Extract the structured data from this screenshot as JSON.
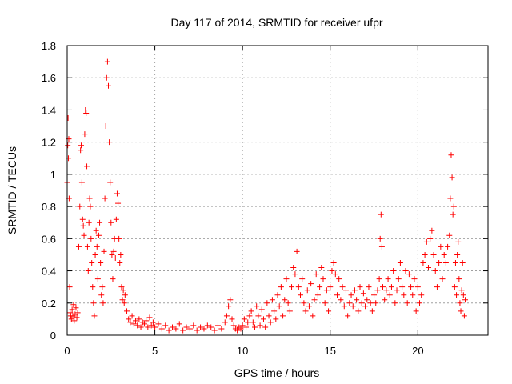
{
  "chart_data": {
    "type": "scatter",
    "title": "Day 117 of 2014, SRMTID for receiver ufpr",
    "xlabel": "GPS time / hours",
    "ylabel": "SRMTID / TECUs",
    "xlim": [
      0,
      24
    ],
    "ylim": [
      0,
      1.8
    ],
    "xticks": [
      0,
      5,
      10,
      15,
      20
    ],
    "xtick_labels": [
      "0",
      "5",
      "10",
      "15",
      "20"
    ],
    "yticks": [
      0,
      0.2,
      0.4,
      0.6,
      0.8,
      1,
      1.2,
      1.4,
      1.6,
      1.8
    ],
    "ytick_labels": [
      "0",
      "0.2",
      "0.4",
      "0.6",
      "0.8",
      "1",
      "1.2",
      "1.4",
      "1.6",
      "1.8"
    ],
    "grid": true,
    "marker": "+",
    "marker_color": "#ff0000",
    "series": [
      {
        "name": "SRMTID",
        "points": [
          [
            0.0,
            0.95
          ],
          [
            0.03,
            1.18
          ],
          [
            0.05,
            1.35
          ],
          [
            0.07,
            1.1
          ],
          [
            0.09,
            1.22
          ],
          [
            0.11,
            0.85
          ],
          [
            0.14,
            0.3
          ],
          [
            0.17,
            0.14
          ],
          [
            0.2,
            0.12
          ],
          [
            0.24,
            0.1
          ],
          [
            0.28,
            0.16
          ],
          [
            0.32,
            0.12
          ],
          [
            0.36,
            0.19
          ],
          [
            0.4,
            0.09
          ],
          [
            0.45,
            0.13
          ],
          [
            0.5,
            0.17
          ],
          [
            0.55,
            0.11
          ],
          [
            0.6,
            0.14
          ],
          [
            0.66,
            0.55
          ],
          [
            0.72,
            0.8
          ],
          [
            0.76,
            1.15
          ],
          [
            0.8,
            1.18
          ],
          [
            0.84,
            0.95
          ],
          [
            0.88,
            0.72
          ],
          [
            0.92,
            0.68
          ],
          [
            0.96,
            0.62
          ],
          [
            1.0,
            1.25
          ],
          [
            1.04,
            1.4
          ],
          [
            1.08,
            1.38
          ],
          [
            1.12,
            1.05
          ],
          [
            1.16,
            0.55
          ],
          [
            1.2,
            0.4
          ],
          [
            1.24,
            0.7
          ],
          [
            1.28,
            0.85
          ],
          [
            1.32,
            0.8
          ],
          [
            1.36,
            0.6
          ],
          [
            1.4,
            0.45
          ],
          [
            1.45,
            0.3
          ],
          [
            1.5,
            0.2
          ],
          [
            1.55,
            0.12
          ],
          [
            1.6,
            0.5
          ],
          [
            1.65,
            0.65
          ],
          [
            1.7,
            0.55
          ],
          [
            1.75,
            0.35
          ],
          [
            1.8,
            0.62
          ],
          [
            1.85,
            0.7
          ],
          [
            1.9,
            0.45
          ],
          [
            1.95,
            0.25
          ],
          [
            2.0,
            0.3
          ],
          [
            2.05,
            0.2
          ],
          [
            2.1,
            0.52
          ],
          [
            2.15,
            0.85
          ],
          [
            2.2,
            1.3
          ],
          [
            2.25,
            1.6
          ],
          [
            2.3,
            1.7
          ],
          [
            2.35,
            1.55
          ],
          [
            2.4,
            1.2
          ],
          [
            2.45,
            0.95
          ],
          [
            2.5,
            0.7
          ],
          [
            2.55,
            0.5
          ],
          [
            2.6,
            0.35
          ],
          [
            2.65,
            0.52
          ],
          [
            2.7,
            0.6
          ],
          [
            2.75,
            0.48
          ],
          [
            2.8,
            0.72
          ],
          [
            2.85,
            0.88
          ],
          [
            2.9,
            0.82
          ],
          [
            2.95,
            0.6
          ],
          [
            3.0,
            0.45
          ],
          [
            3.05,
            0.5
          ],
          [
            3.1,
            0.3
          ],
          [
            3.15,
            0.22
          ],
          [
            3.2,
            0.28
          ],
          [
            3.25,
            0.2
          ],
          [
            3.3,
            0.25
          ],
          [
            3.4,
            0.15
          ],
          [
            3.5,
            0.1
          ],
          [
            3.6,
            0.08
          ],
          [
            3.7,
            0.12
          ],
          [
            3.8,
            0.07
          ],
          [
            3.9,
            0.09
          ],
          [
            4.0,
            0.06
          ],
          [
            4.1,
            0.1
          ],
          [
            4.2,
            0.05
          ],
          [
            4.3,
            0.08
          ],
          [
            4.4,
            0.07
          ],
          [
            4.5,
            0.09
          ],
          [
            4.6,
            0.05
          ],
          [
            4.7,
            0.11
          ],
          [
            4.8,
            0.06
          ],
          [
            4.9,
            0.08
          ],
          [
            5.0,
            0.05
          ],
          [
            5.2,
            0.07
          ],
          [
            5.4,
            0.04
          ],
          [
            5.6,
            0.06
          ],
          [
            5.8,
            0.03
          ],
          [
            6.0,
            0.05
          ],
          [
            6.2,
            0.04
          ],
          [
            6.4,
            0.07
          ],
          [
            6.6,
            0.03
          ],
          [
            6.8,
            0.05
          ],
          [
            7.0,
            0.04
          ],
          [
            7.2,
            0.06
          ],
          [
            7.4,
            0.03
          ],
          [
            7.6,
            0.05
          ],
          [
            7.8,
            0.04
          ],
          [
            8.0,
            0.06
          ],
          [
            8.2,
            0.05
          ],
          [
            8.4,
            0.03
          ],
          [
            8.6,
            0.06
          ],
          [
            8.8,
            0.04
          ],
          [
            9.0,
            0.08
          ],
          [
            9.1,
            0.12
          ],
          [
            9.2,
            0.18
          ],
          [
            9.3,
            0.22
          ],
          [
            9.4,
            0.1
          ],
          [
            9.5,
            0.06
          ],
          [
            9.6,
            0.04
          ],
          [
            9.7,
            0.03
          ],
          [
            9.8,
            0.05
          ],
          [
            9.9,
            0.04
          ],
          [
            10.0,
            0.06
          ],
          [
            10.1,
            0.1
          ],
          [
            10.2,
            0.05
          ],
          [
            10.3,
            0.08
          ],
          [
            10.4,
            0.12
          ],
          [
            10.5,
            0.15
          ],
          [
            10.6,
            0.08
          ],
          [
            10.7,
            0.05
          ],
          [
            10.8,
            0.18
          ],
          [
            10.9,
            0.12
          ],
          [
            11.0,
            0.06
          ],
          [
            11.1,
            0.16
          ],
          [
            11.2,
            0.1
          ],
          [
            11.3,
            0.05
          ],
          [
            11.4,
            0.2
          ],
          [
            11.5,
            0.12
          ],
          [
            11.6,
            0.08
          ],
          [
            11.7,
            0.22
          ],
          [
            11.8,
            0.15
          ],
          [
            11.9,
            0.1
          ],
          [
            12.0,
            0.25
          ],
          [
            12.1,
            0.18
          ],
          [
            12.2,
            0.3
          ],
          [
            12.3,
            0.12
          ],
          [
            12.4,
            0.22
          ],
          [
            12.5,
            0.35
          ],
          [
            12.6,
            0.2
          ],
          [
            12.7,
            0.15
          ],
          [
            12.8,
            0.3
          ],
          [
            12.9,
            0.42
          ],
          [
            13.0,
            0.38
          ],
          [
            13.1,
            0.52
          ],
          [
            13.2,
            0.3
          ],
          [
            13.3,
            0.25
          ],
          [
            13.4,
            0.35
          ],
          [
            13.5,
            0.2
          ],
          [
            13.6,
            0.15
          ],
          [
            13.7,
            0.28
          ],
          [
            13.8,
            0.18
          ],
          [
            13.9,
            0.32
          ],
          [
            14.0,
            0.12
          ],
          [
            14.1,
            0.22
          ],
          [
            14.2,
            0.38
          ],
          [
            14.3,
            0.25
          ],
          [
            14.4,
            0.3
          ],
          [
            14.5,
            0.42
          ],
          [
            14.6,
            0.35
          ],
          [
            14.7,
            0.2
          ],
          [
            14.8,
            0.28
          ],
          [
            14.9,
            0.15
          ],
          [
            15.0,
            0.3
          ],
          [
            15.1,
            0.4
          ],
          [
            15.2,
            0.45
          ],
          [
            15.3,
            0.38
          ],
          [
            15.4,
            0.25
          ],
          [
            15.5,
            0.35
          ],
          [
            15.6,
            0.22
          ],
          [
            15.7,
            0.3
          ],
          [
            15.8,
            0.18
          ],
          [
            15.9,
            0.28
          ],
          [
            16.0,
            0.12
          ],
          [
            16.1,
            0.2
          ],
          [
            16.2,
            0.25
          ],
          [
            16.3,
            0.18
          ],
          [
            16.4,
            0.28
          ],
          [
            16.5,
            0.22
          ],
          [
            16.6,
            0.15
          ],
          [
            16.7,
            0.3
          ],
          [
            16.8,
            0.2
          ],
          [
            16.9,
            0.26
          ],
          [
            17.0,
            0.18
          ],
          [
            17.1,
            0.22
          ],
          [
            17.2,
            0.3
          ],
          [
            17.3,
            0.2
          ],
          [
            17.4,
            0.15
          ],
          [
            17.5,
            0.25
          ],
          [
            17.6,
            0.2
          ],
          [
            17.7,
            0.28
          ],
          [
            17.8,
            0.35
          ],
          [
            17.85,
            0.6
          ],
          [
            17.9,
            0.75
          ],
          [
            17.95,
            0.55
          ],
          [
            18.0,
            0.3
          ],
          [
            18.1,
            0.22
          ],
          [
            18.2,
            0.28
          ],
          [
            18.3,
            0.35
          ],
          [
            18.4,
            0.25
          ],
          [
            18.5,
            0.3
          ],
          [
            18.6,
            0.4
          ],
          [
            18.7,
            0.2
          ],
          [
            18.8,
            0.28
          ],
          [
            18.9,
            0.35
          ],
          [
            19.0,
            0.45
          ],
          [
            19.1,
            0.3
          ],
          [
            19.2,
            0.25
          ],
          [
            19.3,
            0.4
          ],
          [
            19.4,
            0.2
          ],
          [
            19.5,
            0.38
          ],
          [
            19.6,
            0.3
          ],
          [
            19.7,
            0.25
          ],
          [
            19.8,
            0.35
          ],
          [
            19.9,
            0.15
          ],
          [
            20.0,
            0.3
          ],
          [
            20.1,
            0.2
          ],
          [
            20.2,
            0.25
          ],
          [
            20.3,
            0.45
          ],
          [
            20.4,
            0.5
          ],
          [
            20.5,
            0.58
          ],
          [
            20.6,
            0.42
          ],
          [
            20.7,
            0.6
          ],
          [
            20.8,
            0.65
          ],
          [
            20.9,
            0.5
          ],
          [
            21.0,
            0.4
          ],
          [
            21.1,
            0.3
          ],
          [
            21.2,
            0.45
          ],
          [
            21.3,
            0.55
          ],
          [
            21.4,
            0.35
          ],
          [
            21.5,
            0.5
          ],
          [
            21.6,
            0.45
          ],
          [
            21.7,
            0.55
          ],
          [
            21.8,
            0.62
          ],
          [
            21.85,
            0.85
          ],
          [
            21.9,
            1.12
          ],
          [
            21.95,
            0.98
          ],
          [
            22.0,
            0.75
          ],
          [
            22.05,
            0.8
          ],
          [
            22.1,
            0.3
          ],
          [
            22.15,
            0.45
          ],
          [
            22.2,
            0.25
          ],
          [
            22.25,
            0.5
          ],
          [
            22.3,
            0.58
          ],
          [
            22.35,
            0.35
          ],
          [
            22.4,
            0.2
          ],
          [
            22.45,
            0.15
          ],
          [
            22.5,
            0.28
          ],
          [
            22.55,
            0.45
          ],
          [
            22.6,
            0.25
          ],
          [
            22.65,
            0.12
          ],
          [
            22.7,
            0.22
          ]
        ]
      }
    ]
  }
}
